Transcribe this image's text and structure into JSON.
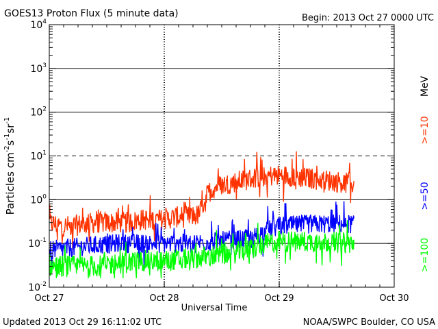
{
  "chart_data": {
    "type": "line",
    "title": "GOES13 Proton Flux (5 minute data)",
    "begin_label": "Begin: 2013 Oct 27 0000 UTC",
    "xlabel": "Universal Time",
    "ylabel": "Particles cm⁻²s⁻¹sr⁻¹",
    "ylabel_parts": {
      "base": "Particles cm",
      "e1": "-2",
      "s": "s",
      "e2": "-1",
      "sr": "sr",
      "e3": "-1"
    },
    "yscale": "log",
    "ylim": [
      0.01,
      10000
    ],
    "xlim_days": [
      0,
      3
    ],
    "x_ticks": [
      {
        "day": 0,
        "label": "Oct 27"
      },
      {
        "day": 1,
        "label": "Oct 28"
      },
      {
        "day": 2,
        "label": "Oct 29"
      },
      {
        "day": 3,
        "label": "Oct 30"
      }
    ],
    "y_ticks": [
      {
        "value": 0.01,
        "exp": "-2"
      },
      {
        "value": 0.1,
        "exp": "-1"
      },
      {
        "value": 1,
        "exp": "0"
      },
      {
        "value": 10,
        "exp": "1"
      },
      {
        "value": 100,
        "exp": "2"
      },
      {
        "value": 1000,
        "exp": "3"
      },
      {
        "value": 10000,
        "exp": "4"
      }
    ],
    "reference_lines": [
      {
        "value": 1000,
        "style": "solid"
      },
      {
        "value": 100,
        "style": "solid"
      },
      {
        "value": 10,
        "style": "dashed"
      },
      {
        "value": 1,
        "style": "solid"
      },
      {
        "value": 0.1,
        "style": "solid"
      }
    ],
    "legend_unit": "MeV",
    "series": [
      {
        "name": ">=10",
        "color": "#ff3300",
        "x": [
          0,
          0.1,
          0.2,
          0.3,
          0.4,
          0.5,
          0.6,
          0.7,
          0.8,
          0.9,
          1.0,
          1.1,
          1.2,
          1.3,
          1.32,
          1.35,
          1.4,
          1.45,
          1.5,
          1.55,
          1.6,
          1.7,
          1.8,
          1.9,
          2.0,
          2.1,
          2.2,
          2.3,
          2.4,
          2.5,
          2.6,
          2.65
        ],
        "y": [
          0.3,
          0.25,
          0.25,
          0.28,
          0.3,
          0.3,
          0.3,
          0.3,
          0.35,
          0.35,
          0.35,
          0.4,
          0.4,
          0.45,
          0.6,
          1.0,
          1.6,
          2.0,
          2.2,
          2.3,
          2.5,
          2.8,
          3.2,
          3.5,
          3.6,
          3.5,
          3.2,
          3.0,
          2.8,
          2.6,
          2.4,
          2.3
        ],
        "noise": 0.9
      },
      {
        "name": ">=50",
        "color": "#0000ff",
        "x": [
          0,
          0.2,
          0.4,
          0.6,
          0.8,
          1.0,
          1.2,
          1.4,
          1.6,
          1.75,
          1.9,
          2.0,
          2.2,
          2.4,
          2.6,
          2.65
        ],
        "y": [
          0.07,
          0.08,
          0.09,
          0.1,
          0.1,
          0.1,
          0.1,
          0.11,
          0.12,
          0.13,
          0.2,
          0.25,
          0.27,
          0.28,
          0.28,
          0.28
        ],
        "noise": 0.8
      },
      {
        "name": ">=100",
        "color": "#00ff00",
        "x": [
          0,
          0.2,
          0.4,
          0.6,
          0.8,
          1.0,
          1.2,
          1.4,
          1.6,
          1.8,
          1.9,
          2.0,
          2.2,
          2.4,
          2.6,
          2.65
        ],
        "y": [
          0.03,
          0.03,
          0.03,
          0.035,
          0.04,
          0.04,
          0.045,
          0.05,
          0.06,
          0.08,
          0.1,
          0.11,
          0.11,
          0.11,
          0.1,
          0.1
        ],
        "noise": 0.9
      }
    ]
  },
  "footer": {
    "updated": "Updated 2013 Oct 29 16:11:02 UTC",
    "credit": "NOAA/SWPC Boulder, CO USA"
  }
}
